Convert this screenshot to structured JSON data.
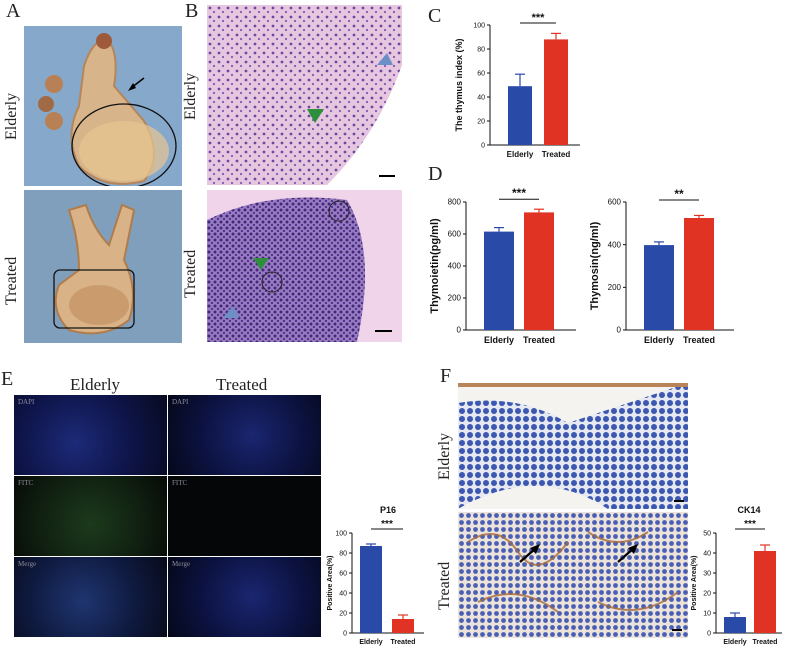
{
  "panels": {
    "A": {
      "label": "A",
      "rows": [
        "Elderly",
        "Treated"
      ]
    },
    "B": {
      "label": "B",
      "rows": [
        "Elderly",
        "Treated"
      ]
    },
    "C": {
      "label": "C"
    },
    "D": {
      "label": "D"
    },
    "E": {
      "label": "E",
      "columns": [
        "Elderly",
        "Treated"
      ],
      "channels": [
        "DAPI",
        "FITC",
        "Merge"
      ]
    },
    "F": {
      "label": "F",
      "rows": [
        "Elderly",
        "Treated"
      ]
    }
  },
  "colors": {
    "elderly": "#2a4aa8",
    "treated": "#e03323",
    "error": "#333333"
  },
  "chart_data": [
    {
      "id": "C",
      "type": "bar",
      "categories": [
        "Elderly",
        "Treated"
      ],
      "values": [
        49,
        88
      ],
      "errors": [
        10,
        5
      ],
      "ylabel": "The thymus index (%)",
      "ylim": [
        0,
        100
      ],
      "yticks": [
        0,
        20,
        40,
        60,
        80,
        100
      ],
      "significance": "***"
    },
    {
      "id": "D1",
      "type": "bar",
      "categories": [
        "Elderly",
        "Treated"
      ],
      "values": [
        615,
        735
      ],
      "errors": [
        25,
        20
      ],
      "ylabel": "Thymoietin(pg/ml)",
      "ylim": [
        0,
        800
      ],
      "yticks": [
        0,
        200,
        400,
        600,
        800
      ],
      "significance": "***"
    },
    {
      "id": "D2",
      "type": "bar",
      "categories": [
        "Elderly",
        "Treated"
      ],
      "values": [
        398,
        525
      ],
      "errors": [
        15,
        12
      ],
      "ylabel": "Thymosin(ng/ml)",
      "ylim": [
        0,
        600
      ],
      "yticks": [
        0,
        200,
        400,
        600
      ],
      "significance": "**"
    },
    {
      "id": "E",
      "type": "bar",
      "title": "P16",
      "categories": [
        "Elderly",
        "Treated"
      ],
      "values": [
        87,
        14
      ],
      "errors": [
        2,
        4
      ],
      "ylabel": "Positive Area(%)",
      "ylim": [
        0,
        100
      ],
      "yticks": [
        0,
        20,
        40,
        60,
        80,
        100
      ],
      "significance": "***"
    },
    {
      "id": "F",
      "type": "bar",
      "title": "CK14",
      "categories": [
        "Elderly",
        "Treated"
      ],
      "values": [
        8,
        41
      ],
      "errors": [
        2,
        3
      ],
      "ylabel": "Positive Area(%)",
      "ylim": [
        0,
        50
      ],
      "yticks": [
        0,
        10,
        20,
        30,
        40,
        50
      ],
      "significance": "***"
    }
  ]
}
